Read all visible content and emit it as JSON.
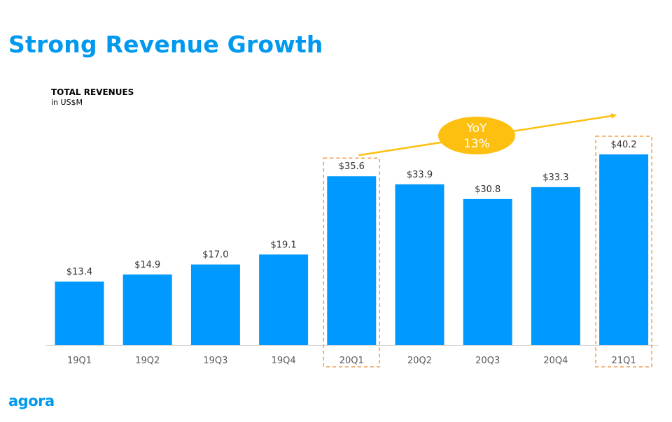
{
  "page_title": "Strong Revenue Growth",
  "logo_text": "agora",
  "colors": {
    "brand": "#0099ee",
    "bar": "#0099ff",
    "highlight_box": "#f29b4b",
    "arrow": "#fdc010",
    "bubble": "#fdc010",
    "bubble_text": "#ffffff"
  },
  "chart_data": {
    "type": "bar",
    "title": "TOTAL REVENUES",
    "subtitle": "in US$M",
    "categories": [
      "19Q1",
      "19Q2",
      "19Q3",
      "19Q4",
      "20Q1",
      "20Q2",
      "20Q3",
      "20Q4",
      "21Q1"
    ],
    "values": [
      13.4,
      14.9,
      17.0,
      19.1,
      35.6,
      33.9,
      30.8,
      33.3,
      40.2
    ],
    "data_labels": [
      "$13.4",
      "$14.9",
      "$17.0",
      "$19.1",
      "$35.6",
      "$33.9",
      "$30.8",
      "$33.3",
      "$40.2"
    ],
    "ylim": [
      0,
      40.2
    ],
    "grid": false,
    "highlighted_categories": [
      "20Q1",
      "21Q1"
    ],
    "annotation": {
      "from": "20Q1",
      "to": "21Q1",
      "line1": "YoY",
      "line2": "13%"
    }
  }
}
